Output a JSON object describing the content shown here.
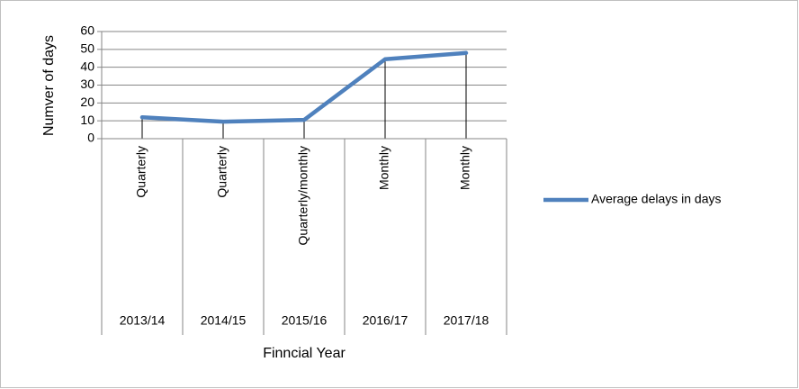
{
  "chart_data": {
    "type": "line",
    "categories": [
      "2013/14",
      "2014/15",
      "2015/16",
      "2016/17",
      "2017/18"
    ],
    "subcategories": [
      "Quarterly",
      "Quarterly",
      "Quarterly/monthly",
      "Monthly",
      "Monthly"
    ],
    "series": [
      {
        "name": "Average delays in days",
        "color": "#4f81bd",
        "values": [
          12,
          9.5,
          10.5,
          44.5,
          48
        ]
      }
    ],
    "ylim": [
      0,
      60
    ],
    "yticks": [
      0,
      10,
      20,
      30,
      40,
      50,
      60
    ],
    "grid": true,
    "drop_lines": true,
    "y_label": "Numver of days",
    "x_label": "Finncial Year",
    "legend": "right"
  }
}
